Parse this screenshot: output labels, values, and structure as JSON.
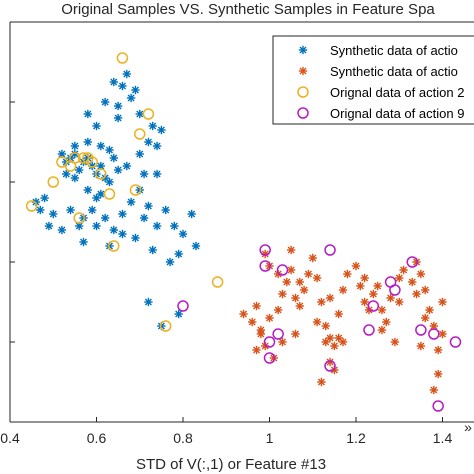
{
  "chart_data": {
    "type": "scatter",
    "title": "Original Samples VS. Synthetic Samples in Feature Spa",
    "xlabel": "STD of V(:,1) or Feature #13",
    "ylabel": "",
    "xlim": [
      0.4,
      1.5
    ],
    "ylim": [
      0.0,
      1.0
    ],
    "xticks": [
      "0.4",
      "0.6",
      "0.8",
      "1",
      "1.2",
      "1.4"
    ],
    "x_offscale_label": "»",
    "grid": false,
    "legend_position": "top-right",
    "series": [
      {
        "name": "Synthetic data of actio",
        "marker": "asterisk",
        "color": "#0072BD",
        "points": [
          [
            0.52,
            0.67
          ],
          [
            0.53,
            0.65
          ],
          [
            0.54,
            0.66
          ],
          [
            0.55,
            0.69
          ],
          [
            0.56,
            0.63
          ],
          [
            0.57,
            0.65
          ],
          [
            0.58,
            0.66
          ],
          [
            0.59,
            0.64
          ],
          [
            0.6,
            0.62
          ],
          [
            0.61,
            0.64
          ],
          [
            0.62,
            0.61
          ],
          [
            0.53,
            0.62
          ],
          [
            0.55,
            0.61
          ],
          [
            0.58,
            0.58
          ],
          [
            0.6,
            0.56
          ],
          [
            0.63,
            0.6
          ],
          [
            0.65,
            0.63
          ],
          [
            0.67,
            0.64
          ],
          [
            0.46,
            0.55
          ],
          [
            0.48,
            0.56
          ],
          [
            0.5,
            0.52
          ],
          [
            0.52,
            0.48
          ],
          [
            0.54,
            0.53
          ],
          [
            0.56,
            0.49
          ],
          [
            0.57,
            0.51
          ],
          [
            0.59,
            0.53
          ],
          [
            0.6,
            0.49
          ],
          [
            0.62,
            0.51
          ],
          [
            0.64,
            0.48
          ],
          [
            0.66,
            0.52
          ],
          [
            0.68,
            0.55
          ],
          [
            0.7,
            0.58
          ],
          [
            0.71,
            0.62
          ],
          [
            0.72,
            0.7
          ],
          [
            0.73,
            0.74
          ],
          [
            0.74,
            0.69
          ],
          [
            0.75,
            0.73
          ],
          [
            0.68,
            0.81
          ],
          [
            0.69,
            0.83
          ],
          [
            0.66,
            0.84
          ],
          [
            0.67,
            0.87
          ],
          [
            0.64,
            0.85
          ],
          [
            0.62,
            0.8
          ],
          [
            0.58,
            0.77
          ],
          [
            0.6,
            0.74
          ],
          [
            0.65,
            0.76
          ],
          [
            0.7,
            0.77
          ],
          [
            0.61,
            0.69
          ],
          [
            0.7,
            0.67
          ],
          [
            0.72,
            0.54
          ],
          [
            0.74,
            0.49
          ],
          [
            0.76,
            0.53
          ],
          [
            0.78,
            0.49
          ],
          [
            0.8,
            0.47
          ],
          [
            0.82,
            0.52
          ],
          [
            0.77,
            0.4
          ],
          [
            0.79,
            0.42
          ],
          [
            0.73,
            0.43
          ],
          [
            0.69,
            0.46
          ],
          [
            0.63,
            0.44
          ],
          [
            0.57,
            0.45
          ],
          [
            0.49,
            0.49
          ],
          [
            0.47,
            0.53
          ],
          [
            0.72,
            0.3
          ],
          [
            0.79,
            0.27
          ],
          [
            0.75,
            0.24
          ],
          [
            0.83,
            0.44
          ],
          [
            0.61,
            0.57
          ],
          [
            0.63,
            0.68
          ],
          [
            0.55,
            0.67
          ],
          [
            0.66,
            0.47
          ],
          [
            0.74,
            0.62
          ],
          [
            0.71,
            0.51
          ],
          [
            0.64,
            0.66
          ],
          [
            0.58,
            0.7
          ],
          [
            0.65,
            0.79
          ]
        ]
      },
      {
        "name": "Synthetic data of actio",
        "marker": "asterisk",
        "color": "#D95319",
        "points": [
          [
            0.94,
            0.27
          ],
          [
            0.96,
            0.25
          ],
          [
            0.97,
            0.29
          ],
          [
            0.98,
            0.22
          ],
          [
            0.99,
            0.19
          ],
          [
            1.0,
            0.26
          ],
          [
            1.01,
            0.16
          ],
          [
            1.02,
            0.28
          ],
          [
            1.03,
            0.32
          ],
          [
            1.04,
            0.35
          ],
          [
            1.05,
            0.38
          ],
          [
            1.06,
            0.31
          ],
          [
            1.07,
            0.29
          ],
          [
            1.08,
            0.33
          ],
          [
            1.09,
            0.37
          ],
          [
            1.1,
            0.41
          ],
          [
            1.11,
            0.36
          ],
          [
            1.12,
            0.3
          ],
          [
            1.13,
            0.24
          ],
          [
            1.14,
            0.21
          ],
          [
            1.15,
            0.19
          ],
          [
            1.16,
            0.27
          ],
          [
            1.17,
            0.33
          ],
          [
            1.18,
            0.37
          ],
          [
            1.2,
            0.39
          ],
          [
            1.21,
            0.34
          ],
          [
            1.22,
            0.3
          ],
          [
            1.24,
            0.32
          ],
          [
            1.25,
            0.34
          ],
          [
            1.26,
            0.28
          ],
          [
            1.27,
            0.25
          ],
          [
            1.28,
            0.31
          ],
          [
            1.3,
            0.36
          ],
          [
            1.31,
            0.38
          ],
          [
            1.33,
            0.35
          ],
          [
            1.34,
            0.32
          ],
          [
            1.35,
            0.37
          ],
          [
            1.36,
            0.33
          ],
          [
            1.37,
            0.28
          ],
          [
            1.38,
            0.24
          ],
          [
            1.39,
            0.18
          ],
          [
            1.4,
            0.22
          ],
          [
            1.38,
            0.08
          ],
          [
            1.39,
            0.12
          ],
          [
            1.14,
            0.15
          ],
          [
            1.15,
            0.13
          ],
          [
            1.13,
            0.2
          ],
          [
            1.12,
            0.1
          ],
          [
            1.16,
            0.21
          ],
          [
            0.97,
            0.18
          ],
          [
            0.98,
            0.23
          ],
          [
            1.02,
            0.37
          ],
          [
            1.05,
            0.43
          ],
          [
            0.99,
            0.42
          ],
          [
            1.0,
            0.39
          ],
          [
            1.22,
            0.36
          ],
          [
            1.23,
            0.28
          ],
          [
            1.29,
            0.2
          ],
          [
            1.34,
            0.4
          ],
          [
            1.36,
            0.26
          ],
          [
            1.11,
            0.25
          ],
          [
            1.3,
            0.3
          ],
          [
            1.17,
            0.2
          ],
          [
            1.14,
            0.31
          ],
          [
            1.06,
            0.22
          ],
          [
            1.07,
            0.35
          ],
          [
            1.26,
            0.23
          ],
          [
            1.4,
            0.3
          ],
          [
            1.03,
            0.2
          ],
          [
            1.35,
            0.19
          ]
        ]
      },
      {
        "name": "Orignal data of action 2",
        "marker": "circle",
        "color": "#EDB120",
        "points": [
          [
            0.45,
            0.54
          ],
          [
            0.5,
            0.6
          ],
          [
            0.52,
            0.65
          ],
          [
            0.54,
            0.64
          ],
          [
            0.55,
            0.66
          ],
          [
            0.57,
            0.66
          ],
          [
            0.58,
            0.66
          ],
          [
            0.59,
            0.65
          ],
          [
            0.61,
            0.62
          ],
          [
            0.63,
            0.57
          ],
          [
            0.64,
            0.44
          ],
          [
            0.69,
            0.58
          ],
          [
            0.72,
            0.77
          ],
          [
            0.7,
            0.72
          ],
          [
            0.66,
            0.91
          ],
          [
            0.88,
            0.35
          ],
          [
            0.76,
            0.24
          ],
          [
            0.56,
            0.51
          ]
        ]
      },
      {
        "name": "Orignal data of action 9",
        "marker": "circle",
        "color": "#B61CC4",
        "points": [
          [
            0.99,
            0.43
          ],
          [
            0.99,
            0.39
          ],
          [
            1.03,
            0.38
          ],
          [
            1.14,
            0.43
          ],
          [
            1.28,
            0.35
          ],
          [
            1.29,
            0.33
          ],
          [
            1.35,
            0.23
          ],
          [
            1.38,
            0.22
          ],
          [
            1.43,
            0.2
          ],
          [
            1.39,
            0.04
          ],
          [
            1.14,
            0.14
          ],
          [
            1.0,
            0.16
          ],
          [
            1.0,
            0.2
          ],
          [
            1.02,
            0.22
          ],
          [
            0.8,
            0.29
          ],
          [
            1.24,
            0.29
          ],
          [
            1.23,
            0.23
          ],
          [
            1.33,
            0.4
          ]
        ]
      }
    ]
  }
}
